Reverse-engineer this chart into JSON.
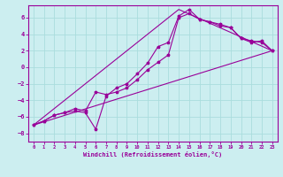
{
  "xlabel": "Windchill (Refroidissement éolien,°C)",
  "background_color": "#cceef0",
  "grid_color": "#aadddd",
  "line_color": "#990099",
  "xlim": [
    -0.5,
    23.5
  ],
  "ylim": [
    -9.0,
    7.5
  ],
  "xticks": [
    0,
    1,
    2,
    3,
    4,
    5,
    6,
    7,
    8,
    9,
    10,
    11,
    12,
    13,
    14,
    15,
    16,
    17,
    18,
    19,
    20,
    21,
    22,
    23
  ],
  "yticks": [
    -8,
    -6,
    -4,
    -2,
    0,
    2,
    4,
    6
  ],
  "line1_x": [
    0,
    1,
    2,
    3,
    4,
    5,
    6,
    7,
    8,
    9,
    10,
    11,
    12,
    13,
    14,
    15,
    16,
    17,
    18,
    19,
    20,
    21,
    22,
    23
  ],
  "line1_y": [
    -7.0,
    -6.5,
    -5.8,
    -5.5,
    -5.3,
    -5.5,
    -7.5,
    -3.5,
    -2.5,
    -2.0,
    -0.8,
    0.5,
    2.5,
    3.0,
    6.2,
    7.0,
    5.8,
    5.5,
    5.2,
    4.8,
    3.5,
    3.0,
    3.2,
    2.0
  ],
  "line2_x": [
    0,
    1,
    2,
    3,
    4,
    5,
    6,
    7,
    8,
    9,
    10,
    11,
    12,
    13,
    14,
    15,
    16,
    17,
    18,
    19,
    20,
    21,
    22,
    23
  ],
  "line2_y": [
    -7.0,
    -6.5,
    -5.8,
    -5.5,
    -5.0,
    -5.3,
    -3.0,
    -3.3,
    -3.0,
    -2.5,
    -1.5,
    -0.3,
    0.6,
    1.5,
    6.0,
    6.5,
    5.8,
    5.5,
    5.0,
    4.8,
    3.5,
    3.2,
    3.0,
    2.0
  ],
  "line3_x": [
    0,
    23
  ],
  "line3_y": [
    -7.0,
    2.0
  ],
  "line4_x": [
    0,
    14,
    23
  ],
  "line4_y": [
    -7.0,
    7.0,
    2.0
  ]
}
